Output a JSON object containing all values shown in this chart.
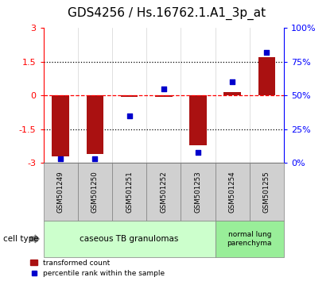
{
  "title": "GDS4256 / Hs.16762.1.A1_3p_at",
  "samples": [
    "GSM501249",
    "GSM501250",
    "GSM501251",
    "GSM501252",
    "GSM501253",
    "GSM501254",
    "GSM501255"
  ],
  "transformed_counts": [
    -2.7,
    -2.6,
    -0.05,
    -0.05,
    -2.2,
    0.15,
    1.7
  ],
  "percentile_ranks": [
    3,
    3,
    35,
    55,
    8,
    60,
    82
  ],
  "ylim_left": [
    -3,
    3
  ],
  "ylim_right": [
    0,
    100
  ],
  "yticks_left": [
    -3,
    -1.5,
    0,
    1.5,
    3
  ],
  "yticks_right": [
    0,
    25,
    50,
    75,
    100
  ],
  "ytick_labels_left": [
    "-3",
    "-1.5",
    "0",
    "1.5",
    "3"
  ],
  "ytick_labels_right": [
    "0%",
    "25%",
    "50%",
    "75%",
    "100%"
  ],
  "bar_color": "#aa1111",
  "scatter_color": "#0000cc",
  "bar_width": 0.5,
  "group1_count": 5,
  "group1_label": "caseous TB granulomas",
  "group2_label": "normal lung\nparenchyma",
  "group1_color": "#ccffcc",
  "group2_color": "#99ee99",
  "sample_box_color": "#d0d0d0",
  "cell_type_label": "cell type",
  "legend_bar_label": "transformed count",
  "legend_scatter_label": "percentile rank within the sample",
  "title_fontsize": 11,
  "tick_fontsize": 8,
  "label_fontsize": 7
}
